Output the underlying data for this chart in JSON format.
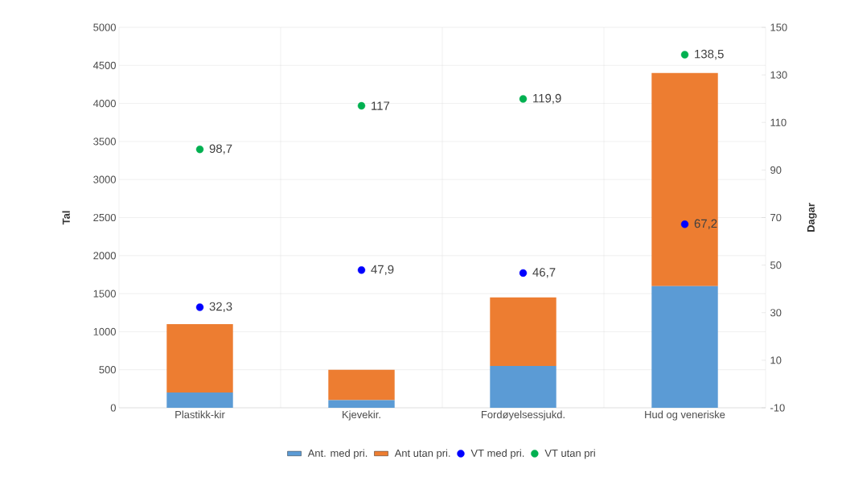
{
  "chart_data": {
    "type": "bar",
    "stacked": true,
    "categories": [
      "Plastikk-kir",
      "Kjevekir.",
      "Fordøyelsessjukd.",
      "Hud og veneriske"
    ],
    "series": [
      {
        "name": "Ant. med pri.",
        "color": "#5b9bd5",
        "values": [
          200,
          100,
          550,
          1600
        ]
      },
      {
        "name": "Ant utan pri.",
        "color": "#ed7d31",
        "values": [
          900,
          400,
          900,
          2800
        ]
      },
      {
        "name": "VT med pri.",
        "type": "scatter",
        "axis": "y2",
        "color": "#0000ff",
        "values": [
          32.3,
          47.9,
          46.7,
          67.2
        ],
        "value_labels": [
          "32,3",
          "47,9",
          "46,7",
          "67,2"
        ]
      },
      {
        "name": "VT utan pri",
        "type": "scatter",
        "axis": "y2",
        "color": "#00b050",
        "values": [
          98.7,
          117,
          119.9,
          138.5
        ],
        "value_labels": [
          "98,7",
          "117",
          "119,9",
          "138,5"
        ]
      }
    ],
    "ylabel": "Tal",
    "y2label": "Dagar",
    "ylim": [
      0,
      5000
    ],
    "yticks": [
      0,
      500,
      1000,
      1500,
      2000,
      2500,
      3000,
      3500,
      4000,
      4500,
      5000
    ],
    "y2lim": [
      -10,
      150
    ],
    "y2ticks": [
      -10,
      10,
      30,
      50,
      70,
      90,
      110,
      130,
      150
    ],
    "grid": true,
    "legend": "bottom"
  }
}
